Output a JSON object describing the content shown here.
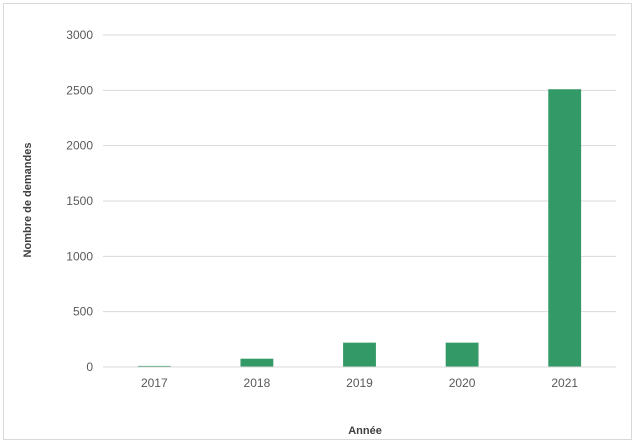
{
  "chart_data": {
    "type": "bar",
    "title": "",
    "xlabel": "Année",
    "ylabel": "Nombre de demandes",
    "categories": [
      "2017",
      "2018",
      "2019",
      "2020",
      "2021"
    ],
    "values": [
      10,
      75,
      220,
      220,
      2510
    ],
    "ylim": [
      0,
      3000
    ],
    "yticks": [
      "0",
      "500",
      "1000",
      "1500",
      "2000",
      "2500",
      "3000"
    ],
    "grid": true,
    "legend": "none",
    "bar_color": "#339966",
    "gridline_color": "#d9d9d9"
  }
}
